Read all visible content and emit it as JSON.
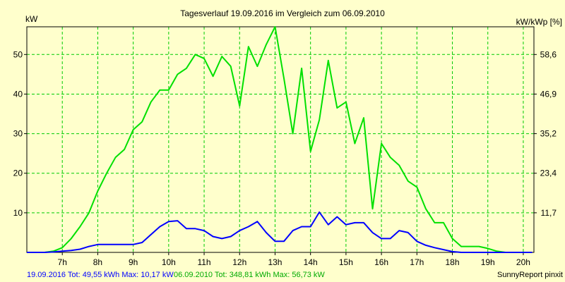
{
  "chart_data": {
    "type": "line",
    "title": "Tagesverlauf 19.09.2016 im Vergleich zum 06.09.2010",
    "ylabel_left": "kW",
    "ylabel_right": "kW/kWp [%]",
    "x_tick_labels": [
      "7h",
      "8h",
      "9h",
      "10h",
      "11h",
      "12h",
      "13h",
      "14h",
      "15h",
      "16h",
      "17h",
      "18h",
      "19h",
      "20h"
    ],
    "x_ticks": [
      7,
      8,
      9,
      10,
      11,
      12,
      13,
      14,
      15,
      16,
      17,
      18,
      19,
      20
    ],
    "xlim": [
      6.0,
      20.3
    ],
    "ylim": [
      0,
      57
    ],
    "y_ticks_left": [
      10,
      20,
      30,
      40,
      50
    ],
    "y_ticks_left_labels": [
      "10",
      "20",
      "30",
      "40",
      "50"
    ],
    "y_ticks_right_values": [
      10,
      20,
      30,
      40,
      50
    ],
    "y_ticks_right_labels": [
      "11,7",
      "23,4",
      "35,2",
      "46,9",
      "58,6"
    ],
    "grid": true,
    "grid_color": "#00cc00",
    "series": [
      {
        "color": "#00e000",
        "x": [
          6.0,
          6.25,
          6.5,
          6.75,
          7.0,
          7.25,
          7.5,
          7.75,
          8.0,
          8.25,
          8.5,
          8.75,
          9.0,
          9.25,
          9.5,
          9.75,
          10.0,
          10.25,
          10.5,
          10.75,
          11.0,
          11.25,
          11.5,
          11.75,
          12.0,
          12.25,
          12.5,
          12.75,
          13.0,
          13.25,
          13.5,
          13.75,
          14.0,
          14.25,
          14.5,
          14.75,
          15.0,
          15.25,
          15.5,
          15.75,
          16.0,
          16.25,
          16.5,
          16.75,
          17.0,
          17.25,
          17.5,
          17.75,
          18.0,
          18.25,
          18.5,
          18.75,
          19.0,
          19.25,
          19.5,
          19.75,
          20.0,
          20.25
        ],
        "values": [
          0,
          0,
          0,
          0.3,
          1.2,
          3.5,
          6.5,
          10.0,
          15.5,
          20.0,
          24.0,
          26.0,
          31.0,
          33.0,
          38.0,
          41.0,
          41.0,
          45.0,
          46.5,
          50.0,
          49.0,
          44.5,
          49.5,
          47.0,
          37.0,
          52.0,
          47.0,
          52.5,
          57.0,
          44.0,
          30.0,
          46.5,
          25.5,
          33.5,
          48.5,
          36.5,
          38.0,
          27.5,
          34.0,
          11.0,
          27.5,
          24.0,
          22.0,
          18.0,
          16.5,
          11.0,
          7.5,
          7.5,
          3.5,
          1.5,
          1.5,
          1.5,
          1.0,
          0.3,
          0,
          0,
          0,
          0
        ]
      },
      {
        "color": "#0000ff",
        "x": [
          6.0,
          6.25,
          6.5,
          6.75,
          7.0,
          7.25,
          7.5,
          7.75,
          8.0,
          8.25,
          8.5,
          8.75,
          9.0,
          9.25,
          9.5,
          9.75,
          10.0,
          10.25,
          10.5,
          10.75,
          11.0,
          11.25,
          11.5,
          11.75,
          12.0,
          12.25,
          12.5,
          12.75,
          13.0,
          13.25,
          13.5,
          13.75,
          14.0,
          14.25,
          14.5,
          14.75,
          15.0,
          15.25,
          15.5,
          15.75,
          16.0,
          16.25,
          16.5,
          16.75,
          17.0,
          17.25,
          17.5,
          17.75,
          18.0,
          18.25,
          18.5,
          18.75,
          19.0,
          19.25,
          19.5,
          19.75,
          20.0,
          20.25
        ],
        "values": [
          0,
          0,
          0,
          0.1,
          0.3,
          0.5,
          0.8,
          1.5,
          2.0,
          2.0,
          2.0,
          2.0,
          2.0,
          2.5,
          4.5,
          6.5,
          7.8,
          8.0,
          6.0,
          6.0,
          5.5,
          4.0,
          3.5,
          4.0,
          5.5,
          6.5,
          7.8,
          5.0,
          2.8,
          2.8,
          5.5,
          6.5,
          6.5,
          10.17,
          7.0,
          9.0,
          7.0,
          7.5,
          7.5,
          5.0,
          3.5,
          3.5,
          5.5,
          5.0,
          2.8,
          1.8,
          1.2,
          0.7,
          0.2,
          0,
          0,
          0,
          0,
          0,
          0,
          0,
          0,
          0
        ]
      }
    ]
  },
  "footer": {
    "legend_blue": "19.09.2016 Tot: 49,55 kWh Max: 10,17 kW",
    "legend_green": "06.09.2010 Tot: 348,81 kWh Max: 56,73 kW",
    "credit": "SunnyReport pinxit"
  },
  "colors": {
    "background": "#ffffcc",
    "axis": "#000000",
    "blue_legend_text": "#0000ff",
    "green_legend_text": "#00aa00"
  }
}
